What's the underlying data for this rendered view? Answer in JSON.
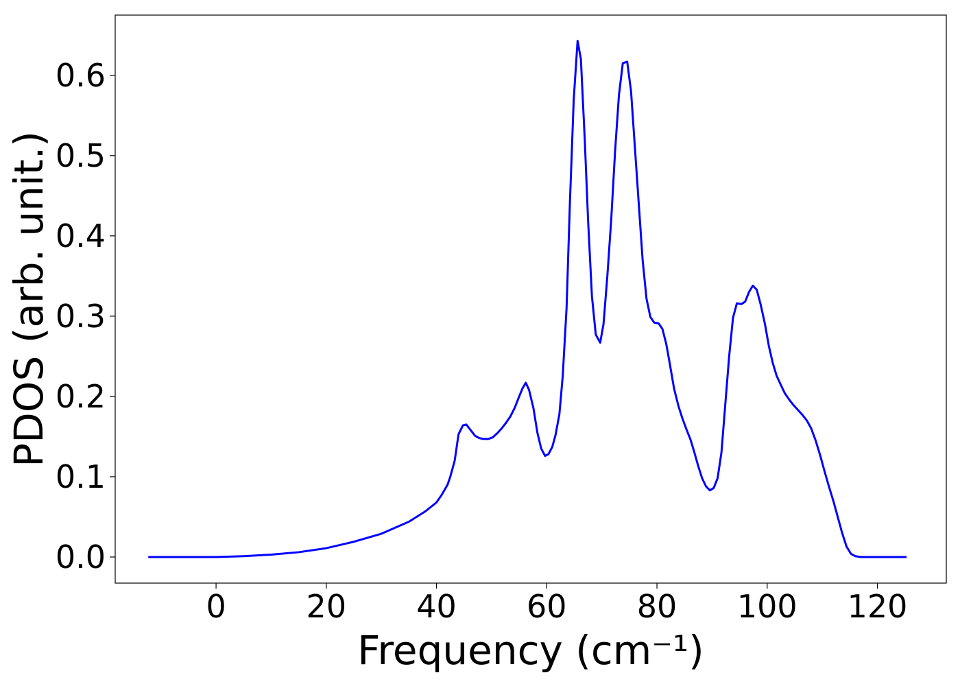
{
  "chart_data": {
    "type": "line",
    "xlabel": "Frequency (cm⁻¹)",
    "ylabel": "PDOS (arb. unit.)",
    "xlim": [
      -18.3,
      132.5
    ],
    "ylim": [
      -0.0325,
      0.675
    ],
    "xticks": [
      0,
      20,
      40,
      60,
      80,
      100,
      120
    ],
    "yticks": [
      {
        "value": 0,
        "label": "0.0"
      },
      0.1,
      0.2,
      0.3,
      0.4,
      0.5,
      0.6
    ],
    "series": [
      {
        "color": "#0000ff",
        "x": [
          -12.3,
          0,
          5,
          10,
          15,
          20,
          25,
          30,
          35,
          38,
          40,
          41,
          42,
          42.5,
          43.3,
          44.0,
          44.8,
          45.4,
          46.2,
          47.0,
          47.8,
          48.6,
          49.4,
          50.2,
          51.0,
          51.8,
          52.6,
          53.4,
          54.2,
          55.0,
          55.6,
          56.2,
          56.8,
          57.6,
          58.3,
          59.0,
          59.7,
          60.3,
          61.0,
          61.6,
          62.3,
          62.9,
          63.6,
          64.2,
          64.9,
          65.6,
          66.2,
          66.9,
          67.5,
          68.2,
          68.9,
          69.7,
          70.3,
          71.0,
          71.7,
          72.4,
          73.1,
          73.8,
          74.6,
          75.3,
          76.0,
          76.7,
          77.4,
          78.1,
          78.8,
          79.5,
          80.3,
          81.0,
          81.7,
          82.4,
          83.1,
          83.9,
          84.6,
          85.3,
          86.1,
          86.8,
          87.5,
          88.2,
          88.9,
          89.6,
          90.3,
          91.0,
          91.7,
          92.4,
          93.1,
          93.8,
          94.5,
          95.3,
          96.0,
          96.7,
          97.4,
          98.1,
          98.8,
          99.6,
          100.3,
          101.0,
          101.7,
          102.5,
          103.2,
          104.0,
          104.8,
          105.6,
          106.4,
          107.2,
          108.0,
          108.8,
          109.6,
          110.4,
          111.2,
          112.0,
          112.8,
          113.6,
          114.4,
          115.2,
          116.0,
          117.0,
          125.3
        ],
        "values": [
          0,
          0,
          0.001,
          0.003,
          0.006,
          0.011,
          0.019,
          0.029,
          0.044,
          0.057,
          0.068,
          0.078,
          0.09,
          0.1,
          0.12,
          0.153,
          0.164,
          0.165,
          0.158,
          0.151,
          0.148,
          0.147,
          0.147,
          0.149,
          0.154,
          0.16,
          0.167,
          0.175,
          0.186,
          0.2,
          0.21,
          0.217,
          0.208,
          0.185,
          0.155,
          0.135,
          0.126,
          0.128,
          0.137,
          0.152,
          0.178,
          0.225,
          0.31,
          0.44,
          0.57,
          0.643,
          0.62,
          0.52,
          0.42,
          0.325,
          0.277,
          0.267,
          0.29,
          0.35,
          0.42,
          0.505,
          0.575,
          0.615,
          0.617,
          0.58,
          0.51,
          0.44,
          0.37,
          0.322,
          0.299,
          0.292,
          0.291,
          0.284,
          0.265,
          0.238,
          0.21,
          0.188,
          0.173,
          0.16,
          0.146,
          0.13,
          0.113,
          0.098,
          0.088,
          0.083,
          0.086,
          0.098,
          0.13,
          0.19,
          0.25,
          0.298,
          0.316,
          0.315,
          0.318,
          0.33,
          0.338,
          0.333,
          0.315,
          0.29,
          0.263,
          0.242,
          0.226,
          0.214,
          0.204,
          0.196,
          0.189,
          0.183,
          0.177,
          0.17,
          0.16,
          0.145,
          0.127,
          0.107,
          0.088,
          0.07,
          0.05,
          0.03,
          0.013,
          0.004,
          0.001,
          0,
          0
        ]
      }
    ]
  }
}
